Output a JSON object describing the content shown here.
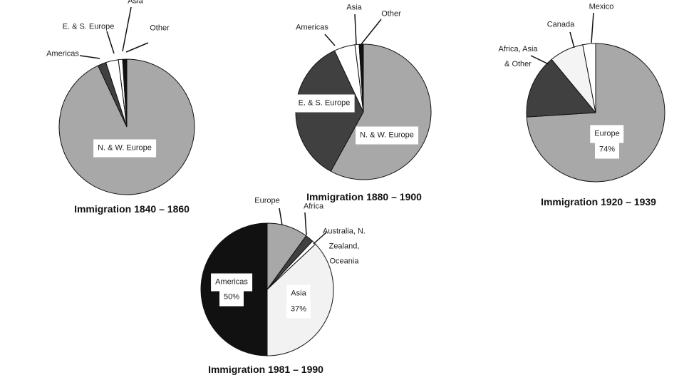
{
  "chart_data": [
    {
      "type": "pie",
      "title": "Immigration 1840 – 1860",
      "categories": [
        "N. & W. Europe",
        "Americas",
        "E. & S. Europe",
        "Asia",
        "Other"
      ],
      "values": [
        93,
        2,
        3,
        1,
        1
      ],
      "colors": [
        "#a8a8a8",
        "#404040",
        "#ffffff",
        "#ffffff",
        "#111111"
      ]
    },
    {
      "type": "pie",
      "title": "Immigration 1880 – 1900",
      "categories": [
        "N. & W. Europe",
        "E. & S. Europe",
        "Americas",
        "Asia",
        "Other"
      ],
      "values": [
        58,
        35,
        5,
        1,
        1
      ],
      "colors": [
        "#a8a8a8",
        "#404040",
        "#ffffff",
        "#ffffff",
        "#111111"
      ]
    },
    {
      "type": "pie",
      "title": "Immigration 1920 – 1939",
      "categories": [
        "Europe",
        "Africa, Asia & Other",
        "Canada",
        "Mexico"
      ],
      "values": [
        74,
        15,
        8,
        3
      ],
      "value_labels": [
        "74%",
        null,
        null,
        null
      ],
      "colors": [
        "#a8a8a8",
        "#404040",
        "#f4f4f4",
        "#ffffff"
      ]
    },
    {
      "type": "pie",
      "title": "Immigration 1981 – 1990",
      "categories": [
        "Europe",
        "Africa",
        "Australia, N. Zealand, Oceania",
        "Asia",
        "Americas"
      ],
      "values": [
        10,
        2,
        1,
        37,
        50
      ],
      "value_labels": [
        null,
        null,
        null,
        "37%",
        "50%"
      ],
      "colors": [
        "#a8a8a8",
        "#404040",
        "#ffffff",
        "#f2f2f2",
        "#111111"
      ]
    }
  ]
}
